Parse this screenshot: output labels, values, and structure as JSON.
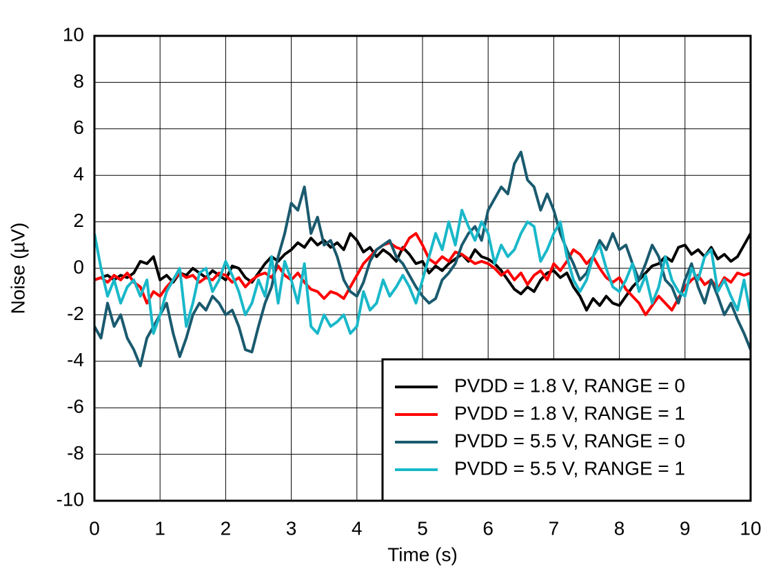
{
  "chart_data": {
    "type": "line",
    "xlabel": "Time (s)",
    "ylabel": "Noise (µV)",
    "xlim": [
      0,
      10
    ],
    "ylim": [
      -10,
      10
    ],
    "xticks": [
      0,
      1,
      2,
      3,
      4,
      5,
      6,
      7,
      8,
      9,
      10
    ],
    "yticks": [
      -10,
      -8,
      -6,
      -4,
      -2,
      0,
      2,
      4,
      6,
      8,
      10
    ],
    "grid": true,
    "legend": "lower right",
    "x": [
      0,
      0.1,
      0.2,
      0.3,
      0.4,
      0.5,
      0.6,
      0.7,
      0.8,
      0.9,
      1,
      1.1,
      1.2,
      1.3,
      1.4,
      1.5,
      1.6,
      1.7,
      1.8,
      1.9,
      2,
      2.1,
      2.2,
      2.3,
      2.4,
      2.5,
      2.6,
      2.7,
      2.8,
      2.9,
      3,
      3.1,
      3.2,
      3.3,
      3.4,
      3.5,
      3.6,
      3.7,
      3.8,
      3.9,
      4,
      4.1,
      4.2,
      4.3,
      4.4,
      4.5,
      4.6,
      4.7,
      4.8,
      4.9,
      5,
      5.1,
      5.2,
      5.3,
      5.4,
      5.5,
      5.6,
      5.7,
      5.8,
      5.9,
      6,
      6.1,
      6.2,
      6.3,
      6.4,
      6.5,
      6.6,
      6.7,
      6.8,
      6.9,
      7,
      7.1,
      7.2,
      7.3,
      7.4,
      7.5,
      7.6,
      7.7,
      7.8,
      7.9,
      8,
      8.1,
      8.2,
      8.3,
      8.4,
      8.5,
      8.6,
      8.7,
      8.8,
      8.9,
      9,
      9.1,
      9.2,
      9.3,
      9.4,
      9.5,
      9.6,
      9.7,
      9.8,
      9.9,
      10
    ],
    "series": [
      {
        "name": "PVDD = 1.8 V, RANGE = 0",
        "color": "#000000",
        "values": [
          -0.5,
          -0.4,
          -0.3,
          -0.5,
          -0.3,
          -0.4,
          -0.2,
          0.3,
          0.2,
          0.5,
          -0.5,
          -0.3,
          -0.6,
          -0.2,
          -0.3,
          0,
          -0.2,
          -0.4,
          -0.1,
          -0.3,
          -0.5,
          0.1,
          0,
          -0.4,
          -0.6,
          -0.2,
          0.2,
          0.5,
          0.3,
          0.6,
          0.8,
          1.1,
          0.9,
          1.3,
          1.0,
          1.2,
          0.9,
          1.1,
          0.8,
          1.5,
          1.2,
          0.7,
          0.9,
          0.5,
          0.8,
          0.6,
          0.3,
          0.9,
          0.6,
          0.2,
          0.3,
          -0.2,
          0.1,
          -0.1,
          0.2,
          0.4,
          0.6,
          0.3,
          0.8,
          0.5,
          0.4,
          0.2,
          -0.1,
          -0.5,
          -0.9,
          -1.1,
          -0.8,
          -1.0,
          -0.5,
          -0.2,
          -0.1,
          -0.4,
          -0.2,
          -0.8,
          -1.2,
          -1.8,
          -1.3,
          -1.6,
          -1.2,
          -1.5,
          -1.6,
          -1.2,
          -0.8,
          -0.5,
          -0.2,
          0.1,
          0.2,
          0.5,
          0.3,
          0.9,
          1.0,
          0.6,
          0.8,
          0.5,
          0.9,
          0.4,
          0.6,
          0.3,
          0.5,
          1.0,
          1.5
        ]
      },
      {
        "name": "PVDD = 1.8 V, RANGE = 1",
        "color": "#ff0000",
        "values": [
          -0.5,
          -0.4,
          -0.6,
          -0.3,
          -0.5,
          -0.2,
          -0.6,
          -0.8,
          -1.5,
          -1.0,
          -1.2,
          -0.8,
          -0.5,
          -0.2,
          -0.4,
          -0.3,
          -0.6,
          -0.4,
          -0.5,
          -0.2,
          -0.3,
          -0.6,
          -0.4,
          -0.8,
          -0.5,
          -0.3,
          -0.2,
          -0.4,
          0.1,
          -0.3,
          -0.5,
          -0.2,
          -0.6,
          -0.9,
          -1.0,
          -1.3,
          -1.0,
          -1.1,
          -1.3,
          -0.8,
          -0.3,
          0.2,
          0.5,
          0.8,
          1.0,
          1.1,
          0.9,
          0.8,
          1.3,
          1.5,
          1.0,
          0.4,
          0.2,
          0.5,
          0.3,
          0.7,
          0.6,
          0.4,
          0.2,
          0.3,
          0.2,
          0.0,
          -0.3,
          -0.1,
          -0.5,
          -0.2,
          -0.7,
          -0.3,
          -0.1,
          -0.5,
          0.2,
          -0.1,
          0.3,
          0.8,
          0.6,
          0.2,
          0.5,
          0.0,
          -0.4,
          -0.6,
          -0.4,
          -0.9,
          -1.2,
          -1.5,
          -2.0,
          -1.6,
          -1.2,
          -1.5,
          -1.8,
          -1.3,
          -0.8,
          -0.5,
          -0.3,
          -0.7,
          -0.5,
          -0.9,
          -0.4,
          -0.6,
          -0.2,
          -0.3,
          -0.2
        ]
      },
      {
        "name": "PVDD = 5.5 V, RANGE = 0",
        "color": "#1a5a6e",
        "values": [
          -2.5,
          -3.0,
          -1.5,
          -2.5,
          -2.0,
          -3.0,
          -3.5,
          -4.2,
          -3.0,
          -2.5,
          -2.0,
          -1.5,
          -2.8,
          -3.8,
          -3.0,
          -2.0,
          -1.5,
          -1.8,
          -1.2,
          -1.5,
          -2.0,
          -1.8,
          -2.5,
          -3.5,
          -3.6,
          -2.5,
          -1.5,
          -0.8,
          0.5,
          1.5,
          2.8,
          2.5,
          3.5,
          1.5,
          2.2,
          1.0,
          1.2,
          0.5,
          -0.5,
          -1.0,
          -1.2,
          -0.6,
          0.3,
          0.8,
          1.0,
          1.2,
          0.5,
          0.2,
          -0.3,
          -0.8,
          -1.2,
          -1.5,
          -1.3,
          -0.5,
          -0.2,
          0.2,
          1.0,
          1.5,
          1.8,
          1.2,
          2.5,
          3.0,
          3.5,
          3.2,
          4.5,
          5.0,
          3.8,
          3.5,
          2.5,
          3.2,
          2.5,
          1.5,
          0.8,
          0.2,
          -0.5,
          -0.2,
          0.5,
          1.2,
          0.8,
          1.5,
          0.8,
          1.0,
          0.2,
          -0.5,
          0.2,
          1.0,
          0.5,
          -0.5,
          -0.8,
          -1.5,
          -0.5,
          0.2,
          -0.8,
          -1.5,
          -0.5,
          -1.2,
          -2.0,
          -1.5,
          -2.2,
          -2.8,
          -3.5
        ]
      },
      {
        "name": "PVDD = 5.5 V, RANGE = 1",
        "color": "#19b8c9",
        "values": [
          1.5,
          0.0,
          -1.2,
          -0.5,
          -1.5,
          -0.8,
          -0.5,
          -1.2,
          -0.5,
          -2.8,
          -2.0,
          -1.0,
          -0.5,
          0.0,
          -2.5,
          -1.5,
          -0.2,
          0.0,
          -1.0,
          -0.5,
          0.3,
          -0.3,
          -1.0,
          -2.0,
          -1.5,
          -0.5,
          -1.2,
          0.5,
          -1.5,
          0.3,
          -0.5,
          -1.5,
          0.2,
          -2.5,
          -2.8,
          -2.0,
          -2.5,
          -2.3,
          -2.0,
          -2.8,
          -2.5,
          -1.0,
          -1.8,
          -1.5,
          -0.5,
          -1.2,
          -0.8,
          -0.3,
          -0.8,
          -1.5,
          -0.5,
          0.5,
          1.5,
          0.8,
          2.0,
          1.0,
          2.5,
          1.8,
          1.2,
          2.0,
          1.5,
          0.2,
          1.0,
          0.5,
          0.8,
          1.5,
          2.0,
          1.8,
          0.3,
          0.8,
          1.5,
          2.0,
          0.5,
          -0.5,
          -1.0,
          -0.5,
          0.5,
          1.0,
          0.0,
          -0.8,
          -1.0,
          -0.5,
          0.2,
          -1.0,
          -0.3,
          -1.5,
          -0.8,
          0.5,
          -0.5,
          -1.0,
          -1.2,
          0.0,
          -0.5,
          0.5,
          0.8,
          -1.0,
          -0.5,
          -1.2,
          -1.8,
          -0.5,
          -2.0
        ]
      }
    ]
  }
}
